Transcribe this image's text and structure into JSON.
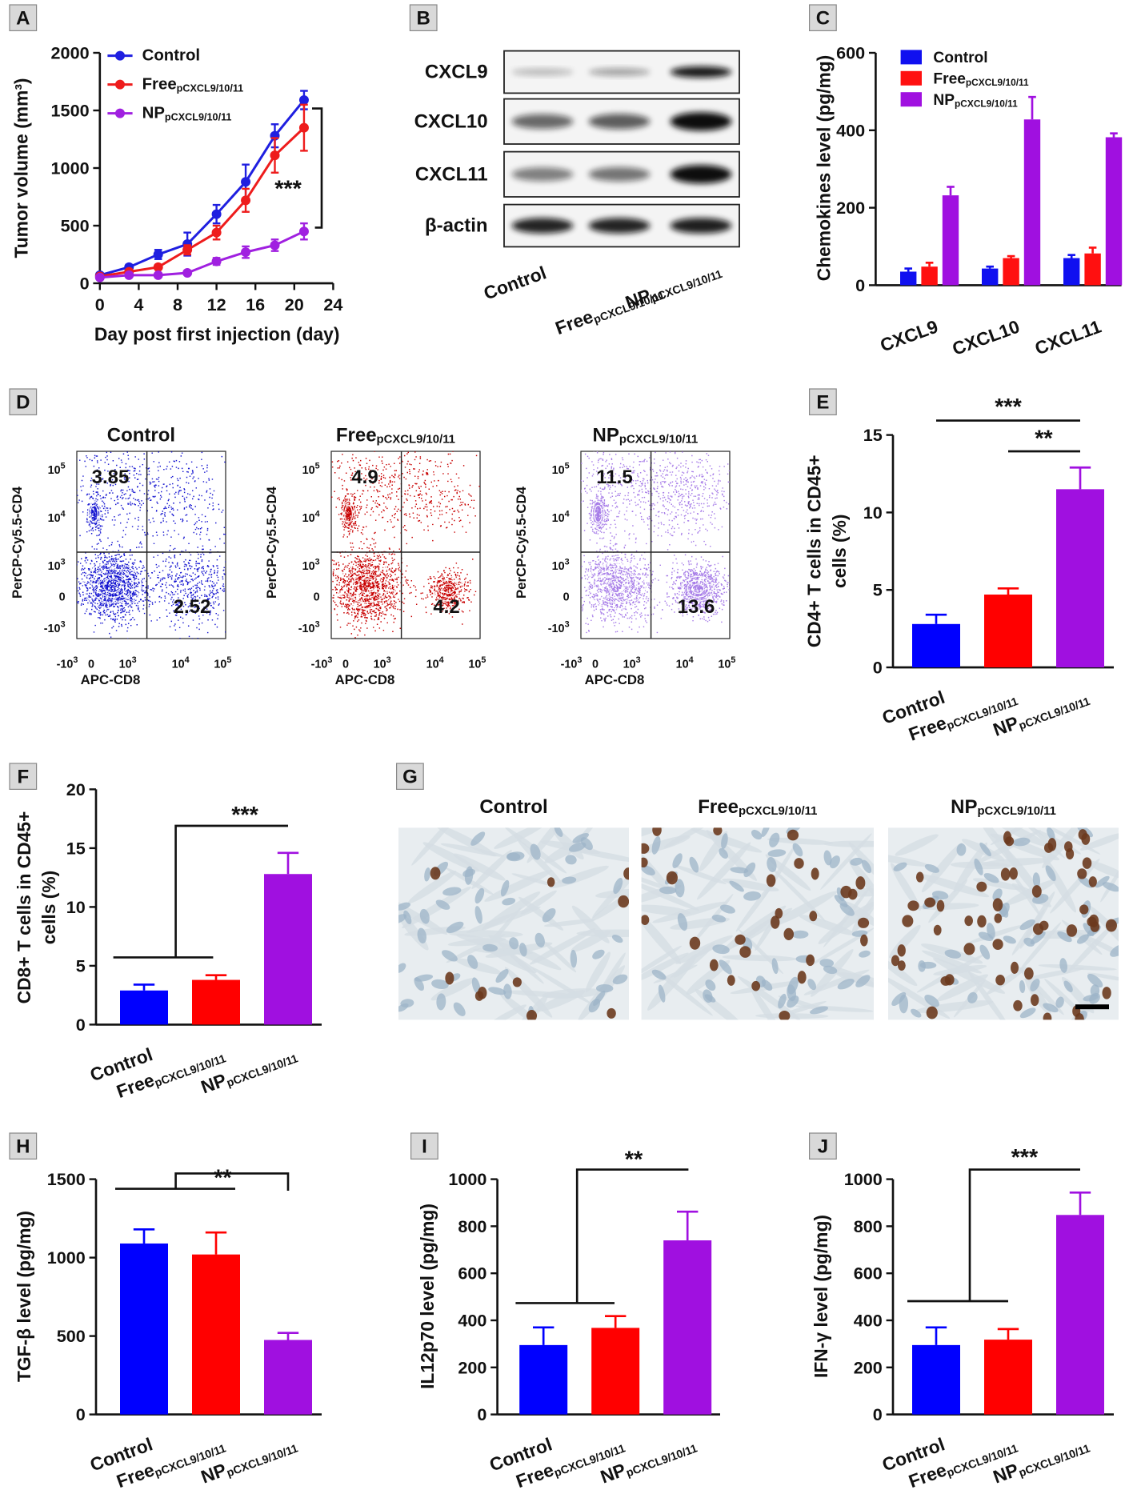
{
  "chart_data": [
    {
      "type": "line",
      "label": "A",
      "xlabel": "Day post first injection (day)",
      "ylabel": "Tumor volume (mm³)",
      "x": [
        0,
        3,
        6,
        9,
        12,
        15,
        18,
        21
      ],
      "xlim": [
        0,
        24
      ],
      "xticks": [
        0,
        4,
        8,
        12,
        16,
        20,
        24
      ],
      "ylim": [
        0,
        2000
      ],
      "yticks": [
        0,
        500,
        1000,
        1500,
        2000
      ],
      "series": [
        {
          "name": "Control",
          "color": "#1f1fe0",
          "values": [
            70,
            140,
            250,
            340,
            600,
            880,
            1280,
            1590
          ],
          "errors": [
            10,
            20,
            40,
            100,
            80,
            150,
            100,
            80
          ]
        },
        {
          "name": "Free",
          "name_subscript": "pCXCL9/10/11",
          "color": "#ee1c1c",
          "values": [
            60,
            100,
            140,
            290,
            440,
            720,
            1110,
            1350
          ],
          "errors": [
            10,
            15,
            20,
            40,
            60,
            100,
            150,
            200
          ]
        },
        {
          "name": "NP",
          "name_subscript": "pCXCL9/10/11",
          "color": "#a020e0",
          "values": [
            50,
            70,
            70,
            90,
            190,
            270,
            330,
            450
          ],
          "errors": [
            10,
            10,
            10,
            15,
            30,
            50,
            50,
            70
          ]
        }
      ],
      "annotations": [
        "***"
      ]
    },
    {
      "type": "grouped-bar",
      "label": "C",
      "ylabel": "Chemokines  level (pg/mg)",
      "categories": [
        "CXCL9",
        "CXCL10",
        "CXCL11"
      ],
      "ylim": [
        0,
        600
      ],
      "yticks": [
        0,
        200,
        400,
        600
      ],
      "series": [
        {
          "name": "Control",
          "color": "#1010f0",
          "values": [
            35,
            43,
            70
          ],
          "errors": [
            8,
            5,
            8
          ]
        },
        {
          "name": "Free",
          "name_subscript": "pCXCL9/10/11",
          "color": "#ff1010",
          "values": [
            48,
            70,
            82
          ],
          "errors": [
            10,
            5,
            15
          ]
        },
        {
          "name": "NP",
          "name_subscript": "pCXCL9/10/11",
          "color": "#a010e0",
          "values": [
            232,
            428,
            382
          ],
          "errors": [
            22,
            58,
            10
          ]
        }
      ]
    },
    {
      "type": "bar",
      "label": "E",
      "ylabel": [
        "CD4+ T cells in CD45+",
        "cells (%)"
      ],
      "categories": [
        "Control",
        "Free",
        "NP"
      ],
      "category_subscripts": [
        null,
        "pCXCL9/10/11",
        "pCXCL9/10/11"
      ],
      "colors": [
        "#0000ff",
        "#ff0000",
        "#a010e0"
      ],
      "values": [
        2.8,
        4.7,
        11.5
      ],
      "errors": [
        0.6,
        0.4,
        1.4
      ],
      "ylim": [
        0,
        15
      ],
      "yticks": [
        0,
        5,
        10,
        15
      ],
      "annotations": [
        "***",
        "**"
      ]
    },
    {
      "type": "bar",
      "label": "F",
      "ylabel": [
        "CD8+ T cells in CD45+",
        "cells (%)"
      ],
      "categories": [
        "Control",
        "Free",
        "NP"
      ],
      "category_subscripts": [
        null,
        "pCXCL9/10/11",
        "pCXCL9/10/11"
      ],
      "colors": [
        "#0000ff",
        "#ff0000",
        "#a010e0"
      ],
      "values": [
        2.9,
        3.8,
        12.8
      ],
      "errors": [
        0.5,
        0.4,
        1.8
      ],
      "ylim": [
        0,
        20
      ],
      "yticks": [
        0,
        5,
        10,
        15,
        20
      ],
      "annotations": [
        "***"
      ]
    },
    {
      "type": "bar",
      "label": "H",
      "ylabel": "TGF-β level (pg/mg)",
      "categories": [
        "Control",
        "Free",
        "NP"
      ],
      "category_subscripts": [
        null,
        "pCXCL9/10/11",
        "pCXCL9/10/11"
      ],
      "colors": [
        "#0000ff",
        "#ff0000",
        "#a010e0"
      ],
      "values": [
        1090,
        1020,
        475
      ],
      "errors": [
        90,
        140,
        45
      ],
      "ylim": [
        0,
        1500
      ],
      "yticks": [
        0,
        500,
        1000,
        1500
      ],
      "annotations": [
        "**"
      ]
    },
    {
      "type": "bar",
      "label": "I",
      "ylabel": "IL12p70 level (pg/mg)",
      "categories": [
        "Control",
        "Free",
        "NP"
      ],
      "category_subscripts": [
        null,
        "pCXCL9/10/11",
        "pCXCL9/10/11"
      ],
      "colors": [
        "#0000ff",
        "#ff0000",
        "#a010e0"
      ],
      "values": [
        295,
        368,
        740
      ],
      "errors": [
        75,
        50,
        122
      ],
      "ylim": [
        0,
        1000
      ],
      "yticks": [
        0,
        200,
        400,
        600,
        800,
        1000
      ],
      "annotations": [
        "**"
      ]
    },
    {
      "type": "bar",
      "label": "J",
      "ylabel": "IFN-γ level (pg/mg)",
      "categories": [
        "Control",
        "Free",
        "NP"
      ],
      "category_subscripts": [
        null,
        "pCXCL9/10/11",
        "pCXCL9/10/11"
      ],
      "colors": [
        "#0000ff",
        "#ff0000",
        "#a010e0"
      ],
      "values": [
        295,
        318,
        848
      ],
      "errors": [
        75,
        45,
        95
      ],
      "ylim": [
        0,
        1000
      ],
      "yticks": [
        0,
        200,
        400,
        600,
        800,
        1000
      ],
      "annotations": [
        "***"
      ]
    }
  ],
  "blot": {
    "label": "B",
    "rows": [
      "CXCL9",
      "CXCL10",
      "CXCL11",
      "β-actin"
    ],
    "lanes": [
      "Control",
      "Free",
      "NP"
    ],
    "lane_subscripts": [
      null,
      "pCXCL9/10/11",
      "pCXCL9/10/11"
    ]
  },
  "flow": {
    "label": "D",
    "titles": [
      "Control",
      "Free",
      "NP"
    ],
    "title_subscripts": [
      null,
      "pCXCL9/10/11",
      "pCXCL9/10/11"
    ],
    "upper_left": [
      3.85,
      4.9,
      11.5
    ],
    "lower_right": [
      2.52,
      4.2,
      13.6
    ],
    "xlabel": "APC-CD8",
    "ylabel": "PerCP-Cy5.5-CD4",
    "xticks": [
      {
        "base": "-10",
        "exp": "3"
      },
      {
        "base": "0"
      },
      {
        "base": "10",
        "exp": "3"
      },
      {
        "base": "10",
        "exp": "4"
      },
      {
        "base": "10",
        "exp": "5"
      }
    ],
    "yticks": [
      {
        "base": "-10",
        "exp": "3"
      },
      {
        "base": "0"
      },
      {
        "base": "10",
        "exp": "3"
      },
      {
        "base": "10",
        "exp": "4"
      },
      {
        "base": "10",
        "exp": "5"
      }
    ]
  },
  "histology": {
    "label": "G",
    "titles": [
      "Control",
      "Free",
      "NP"
    ],
    "title_subscripts": [
      null,
      "pCXCL9/10/11",
      "pCXCL9/10/11"
    ]
  }
}
